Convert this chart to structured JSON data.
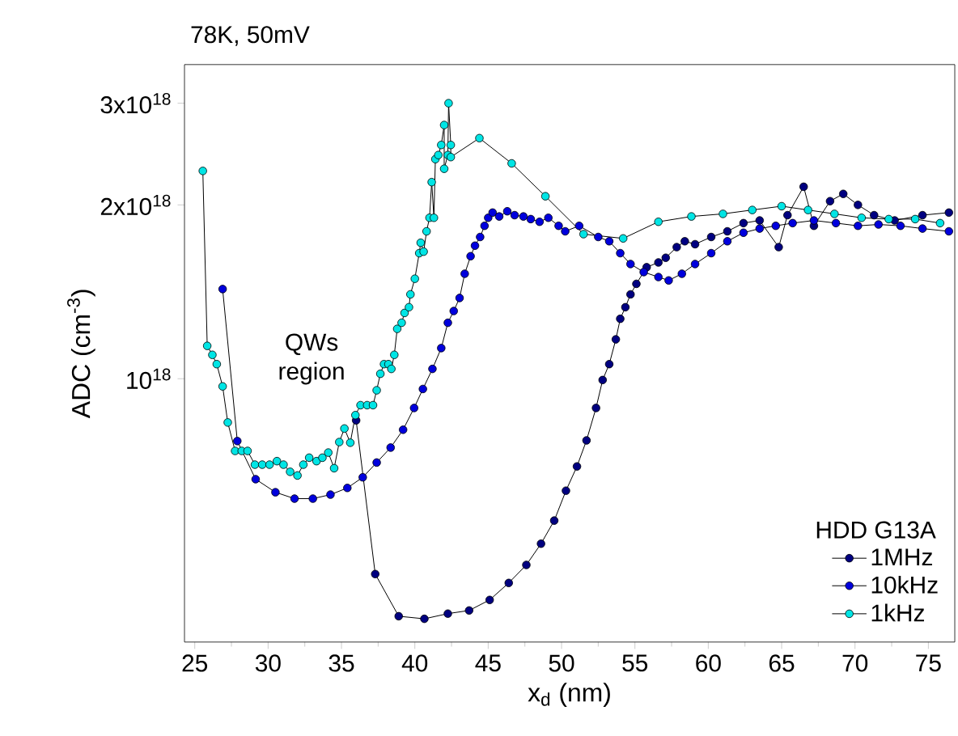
{
  "chart_data": {
    "type": "line",
    "title": "78K, 50mV",
    "xlabel": "x$_{d}$ (nm)",
    "ylabel": "ADC (cm$^{-3}$)",
    "legend_title": "HDD G13A",
    "annotations": [
      "QWs region"
    ],
    "log": "y",
    "legend": "bottom right",
    "marker": "circle",
    "line_style": "solid",
    "xlim": [
      24.3,
      76.8
    ],
    "xticks": [
      25,
      30,
      35,
      40,
      45,
      50,
      55,
      60,
      65,
      70,
      75
    ],
    "ylim": [
      3.5e+17,
      3.5e+18
    ],
    "yticks": [
      {
        "value": 1e+18,
        "label": "10$^{18}$"
      },
      {
        "value": 2e+18,
        "label": "2x10$^{18}$"
      },
      {
        "value": 3e+18,
        "label": "3x10$^{18}$"
      }
    ],
    "series": [
      {
        "name": "1MHz",
        "color": "#000080",
        "x": [
          36.0,
          37.3,
          38.9,
          40.65,
          42.25,
          43.7,
          45.1,
          46.4,
          47.6,
          48.6,
          49.5,
          50.3,
          51.05,
          51.7,
          52.35,
          52.8,
          53.25,
          53.7,
          54.0,
          54.35,
          54.7,
          55.1,
          55.8,
          56.6,
          57.1,
          57.85,
          58.4,
          59.1,
          60.2,
          61.3,
          62.4,
          63.5,
          64.8,
          65.4,
          66.5,
          67.2,
          68.3,
          69.2,
          70.2,
          71.3,
          72.7,
          74.6,
          76.4
        ],
        "values": [
          8.47e+17,
          4.59e+17,
          3.88e+17,
          3.84e+17,
          3.92e+17,
          3.97e+17,
          4.14e+17,
          4.43e+17,
          4.76e+17,
          5.18e+17,
          5.68e+17,
          6.4e+17,
          7.05e+17,
          7.82e+17,
          8.9e+17,
          9.95e+17,
          1.06e+18,
          1.17e+18,
          1.27e+18,
          1.33e+18,
          1.4e+18,
          1.46e+18,
          1.56e+18,
          1.59e+18,
          1.62e+18,
          1.69e+18,
          1.73e+18,
          1.71e+18,
          1.76e+18,
          1.8e+18,
          1.86e+18,
          1.88e+18,
          1.69e+18,
          1.92e+18,
          2.15e+18,
          1.84e+18,
          2.03e+18,
          2.09e+18,
          2e+18,
          1.92e+18,
          1.88e+18,
          1.92e+18,
          1.94e+18
        ]
      },
      {
        "name": "10kHz",
        "color": "#0000dd",
        "x": [
          26.9,
          27.9,
          29.15,
          30.5,
          31.8,
          33.05,
          34.25,
          35.4,
          36.45,
          37.4,
          38.35,
          39.2,
          39.95,
          40.55,
          41.2,
          41.8,
          42.25,
          42.65,
          43.05,
          43.4,
          43.8,
          44.1,
          44.45,
          44.75,
          45.0,
          45.3,
          45.75,
          46.3,
          46.8,
          47.4,
          47.9,
          48.5,
          49.1,
          49.8,
          50.25,
          51.2,
          52.5,
          53.25,
          54.0,
          54.7,
          55.6,
          56.6,
          57.3,
          58.2,
          59.1,
          60.2,
          61.3,
          62.4,
          63.5,
          64.6,
          65.75,
          67.2,
          68.7,
          70.2,
          71.6,
          73.1,
          74.6,
          76.4
        ],
        "values": [
          1.43e+18,
          7.8e+17,
          6.7e+17,
          6.36e+17,
          6.2e+17,
          6.2e+17,
          6.3e+17,
          6.47e+17,
          6.75e+17,
          7.16e+17,
          7.6e+17,
          8.16e+17,
          8.9e+17,
          9.6e+17,
          1.04e+18,
          1.13e+18,
          1.25e+18,
          1.31e+18,
          1.38e+18,
          1.52e+18,
          1.63e+18,
          1.7e+18,
          1.76e+18,
          1.84e+18,
          1.9e+18,
          1.94e+18,
          1.91e+18,
          1.95e+18,
          1.92e+18,
          1.91e+18,
          1.89e+18,
          1.87e+18,
          1.9e+18,
          1.84e+18,
          1.8e+18,
          1.84e+18,
          1.76e+18,
          1.73e+18,
          1.65e+18,
          1.58e+18,
          1.53e+18,
          1.5e+18,
          1.48e+18,
          1.52e+18,
          1.58e+18,
          1.65e+18,
          1.73e+18,
          1.79e+18,
          1.82e+18,
          1.84e+18,
          1.86e+18,
          1.88e+18,
          1.86e+18,
          1.84e+18,
          1.85e+18,
          1.84e+18,
          1.82e+18,
          1.8e+18
        ]
      },
      {
        "name": "1kHz",
        "color": "#00e5e5",
        "x": [
          25.55,
          25.85,
          26.2,
          26.5,
          26.9,
          27.25,
          27.75,
          28.2,
          28.6,
          29.1,
          29.6,
          30.1,
          30.6,
          31.05,
          31.5,
          32.0,
          32.4,
          32.8,
          33.3,
          33.7,
          34.1,
          34.5,
          34.85,
          35.2,
          35.6,
          35.95,
          36.3,
          36.75,
          37.15,
          37.4,
          37.65,
          37.9,
          38.2,
          38.4,
          38.6,
          38.8,
          39.1,
          39.3,
          39.6,
          39.7,
          40.0,
          40.3,
          40.4,
          40.6,
          40.8,
          41.0,
          41.15,
          41.3,
          41.4,
          41.6,
          41.8,
          42.0,
          42.0,
          42.25,
          42.3,
          42.45,
          42.45,
          44.4,
          46.6,
          48.9,
          51.5,
          54.2,
          56.6,
          58.85,
          61.0,
          63.0,
          65.0,
          66.8,
          68.6,
          70.45,
          72.3,
          74.1,
          75.8
        ],
        "values": [
          2.29e+18,
          1.14e+18,
          1.1e+18,
          1.06e+18,
          9.7e+17,
          8.4e+17,
          7.5e+17,
          7.5e+17,
          7.5e+17,
          7.1e+17,
          7.1e+17,
          7.1e+17,
          7.2e+17,
          7.1e+17,
          6.9e+17,
          6.8e+17,
          7.1e+17,
          7.3e+17,
          7.2e+17,
          7.3e+17,
          7.45e+17,
          7e+17,
          7.77e+17,
          8.2e+17,
          7.75e+17,
          8.65e+17,
          9e+17,
          9e+17,
          9e+17,
          9.55e+17,
          1.02e+18,
          1.06e+18,
          1.06e+18,
          1.04e+18,
          1.1e+18,
          1.22e+18,
          1.25e+18,
          1.3e+18,
          1.33e+18,
          1.4e+18,
          1.49e+18,
          1.65e+18,
          1.72e+18,
          1.66e+18,
          1.8e+18,
          1.9e+18,
          2.19e+18,
          1.9e+18,
          2.4e+18,
          2.44e+18,
          2.54e+18,
          2.75e+18,
          2.31e+18,
          2.44e+18,
          3e+18,
          2.54e+18,
          2.42e+18,
          2.61e+18,
          2.36e+18,
          2.07e+18,
          1.78e+18,
          1.75e+18,
          1.87e+18,
          1.91e+18,
          1.93e+18,
          1.96e+18,
          1.99e+18,
          1.96e+18,
          1.93e+18,
          1.9e+18,
          1.89e+18,
          1.89e+18,
          1.86e+18
        ]
      }
    ]
  }
}
